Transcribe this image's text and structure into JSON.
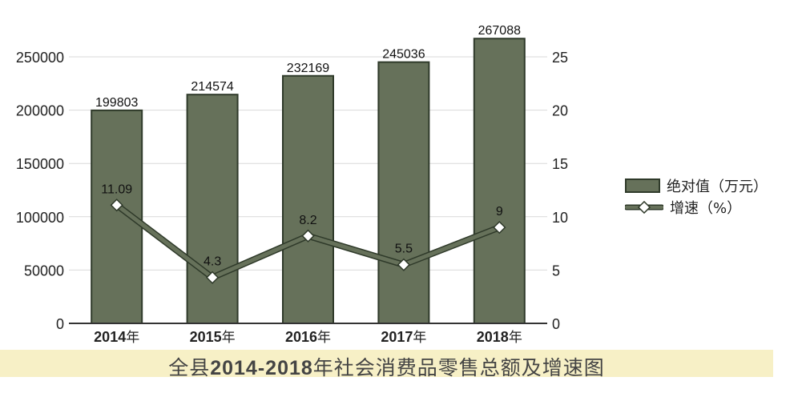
{
  "chart_data": {
    "type": "bar+line",
    "categories": [
      "2014年",
      "2015年",
      "2016年",
      "2017年",
      "2018年"
    ],
    "series": [
      {
        "name": "绝对值（万元）",
        "type": "bar",
        "axis": "left",
        "values": [
          199803,
          214574,
          232169,
          245036,
          267088
        ],
        "labels": [
          "199803",
          "214574",
          "232169",
          "245036",
          "267088"
        ]
      },
      {
        "name": "增速（%）",
        "type": "line",
        "axis": "right",
        "values": [
          11.09,
          4.3,
          8.2,
          5.5,
          9
        ],
        "labels": [
          "11.09",
          "4.3",
          "8.2",
          "5.5",
          "9"
        ]
      }
    ],
    "y_left": {
      "min": 0,
      "max": 250000,
      "ticks": [
        "0",
        "50000",
        "100000",
        "150000",
        "200000",
        "250000"
      ]
    },
    "y_right": {
      "min": 0,
      "max": 25,
      "ticks": [
        "0",
        "5",
        "10",
        "15",
        "20",
        "25"
      ]
    },
    "grid": true,
    "legend_position": "right",
    "colors": {
      "bar_fill": "#66715a",
      "bar_stroke": "#2f3a2a",
      "line": "#66715a",
      "grid": "#d9d9d9"
    }
  },
  "caption": {
    "prefix": "全县",
    "years": "2014-2018",
    "suffix": "年社会消费品零售总额及增速图"
  },
  "legend": {
    "bar_label": "绝对值（万元）",
    "line_label": "增速（%）"
  }
}
